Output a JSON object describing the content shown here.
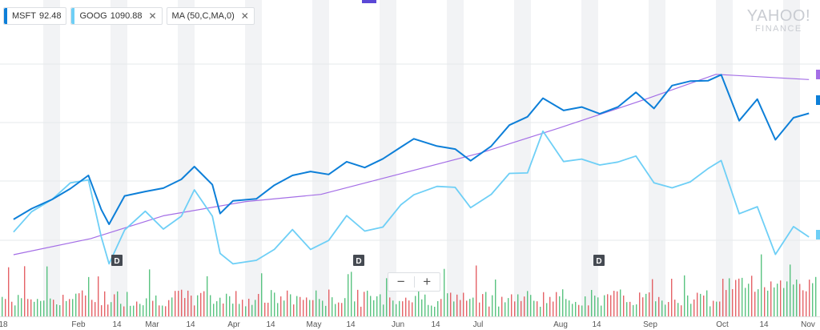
{
  "legend": {
    "items": [
      {
        "symbol": "MSFT",
        "value": "92.48",
        "color": "#0d7fd8",
        "close": ""
      },
      {
        "symbol": "GOOG",
        "value": "1090.88",
        "color": "#6ecff6",
        "close": "✕"
      },
      {
        "symbol": "MA (50,C,MA,0)",
        "value": "",
        "color": "",
        "close": "✕"
      }
    ]
  },
  "logo": {
    "line1": "YAHOO!",
    "line2": "FINANCE"
  },
  "zoom": {
    "minus": "−",
    "plus": "+"
  },
  "colors": {
    "msft": "#0d7fd8",
    "goog": "#6ecff6",
    "ma": "#a46ee6",
    "volume_up": "#3cb86a",
    "volume_down": "#e0474c",
    "band": "#f2f3f5",
    "marker_ma": "#a46ee6",
    "marker_msft": "#0d7fd8",
    "marker_goog": "#6ecff6"
  },
  "chart_data": {
    "type": "line",
    "title": "",
    "xlabel": "",
    "ylabel": "",
    "grid": true,
    "legend_position": "top-left",
    "x_ticks": [
      "18",
      "Feb",
      "14",
      "Mar",
      "14",
      "Apr",
      "14",
      "May",
      "14",
      "Jun",
      "14",
      "Jul",
      "Aug",
      "14",
      "Sep",
      "Oct",
      "14",
      "Nov"
    ],
    "event_markers": [
      "D",
      "D",
      "D"
    ],
    "series": [
      {
        "name": "MSFT",
        "values": [
          {
            "date": "2018-01-02",
            "value": 86.0
          },
          {
            "date": "2018-01-09",
            "value": 88.2
          },
          {
            "date": "2018-01-17",
            "value": 90.1
          },
          {
            "date": "2018-01-24",
            "value": 92.3
          },
          {
            "date": "2018-01-31",
            "value": 95.0
          },
          {
            "date": "2018-02-05",
            "value": 88.0
          },
          {
            "date": "2018-02-08",
            "value": 85.0
          },
          {
            "date": "2018-02-14",
            "value": 90.8
          },
          {
            "date": "2018-02-22",
            "value": 91.7
          },
          {
            "date": "2018-03-01",
            "value": 92.4
          },
          {
            "date": "2018-03-08",
            "value": 94.2
          },
          {
            "date": "2018-03-13",
            "value": 96.8
          },
          {
            "date": "2018-03-20",
            "value": 93.1
          },
          {
            "date": "2018-03-23",
            "value": 87.2
          },
          {
            "date": "2018-03-28",
            "value": 89.8
          },
          {
            "date": "2018-04-06",
            "value": 90.2
          },
          {
            "date": "2018-04-13",
            "value": 93.0
          },
          {
            "date": "2018-04-20",
            "value": 95.0
          },
          {
            "date": "2018-04-27",
            "value": 95.8
          },
          {
            "date": "2018-05-04",
            "value": 95.2
          },
          {
            "date": "2018-05-11",
            "value": 97.8
          },
          {
            "date": "2018-05-18",
            "value": 96.6
          },
          {
            "date": "2018-05-25",
            "value": 98.4
          },
          {
            "date": "2018-06-01",
            "value": 100.8
          },
          {
            "date": "2018-06-06",
            "value": 102.5
          },
          {
            "date": "2018-06-15",
            "value": 101.0
          },
          {
            "date": "2018-06-22",
            "value": 100.4
          },
          {
            "date": "2018-06-28",
            "value": 98.0
          },
          {
            "date": "2018-07-06",
            "value": 101.0
          },
          {
            "date": "2018-07-13",
            "value": 105.3
          },
          {
            "date": "2018-07-20",
            "value": 107.0
          },
          {
            "date": "2018-07-26",
            "value": 110.8
          },
          {
            "date": "2018-08-03",
            "value": 108.3
          },
          {
            "date": "2018-08-10",
            "value": 109.0
          },
          {
            "date": "2018-08-17",
            "value": 107.6
          },
          {
            "date": "2018-08-24",
            "value": 109.0
          },
          {
            "date": "2018-08-31",
            "value": 112.0
          },
          {
            "date": "2018-09-07",
            "value": 108.7
          },
          {
            "date": "2018-09-14",
            "value": 113.4
          },
          {
            "date": "2018-09-21",
            "value": 114.3
          },
          {
            "date": "2018-09-28",
            "value": 114.4
          },
          {
            "date": "2018-10-03",
            "value": 115.6
          },
          {
            "date": "2018-10-10",
            "value": 106.2
          },
          {
            "date": "2018-10-17",
            "value": 110.6
          },
          {
            "date": "2018-10-24",
            "value": 102.3
          },
          {
            "date": "2018-10-31",
            "value": 106.8
          },
          {
            "date": "2018-11-06",
            "value": 107.7
          }
        ]
      },
      {
        "name": "GOOG",
        "values": [
          {
            "date": "2018-01-02",
            "value": 1065
          },
          {
            "date": "2018-01-09",
            "value": 1106
          },
          {
            "date": "2018-01-17",
            "value": 1131
          },
          {
            "date": "2018-01-24",
            "value": 1164
          },
          {
            "date": "2018-01-31",
            "value": 1170
          },
          {
            "date": "2018-02-05",
            "value": 1055
          },
          {
            "date": "2018-02-08",
            "value": 1001
          },
          {
            "date": "2018-02-14",
            "value": 1069
          },
          {
            "date": "2018-02-22",
            "value": 1107
          },
          {
            "date": "2018-03-01",
            "value": 1071
          },
          {
            "date": "2018-03-08",
            "value": 1097
          },
          {
            "date": "2018-03-13",
            "value": 1150
          },
          {
            "date": "2018-03-20",
            "value": 1097
          },
          {
            "date": "2018-03-23",
            "value": 1022
          },
          {
            "date": "2018-03-28",
            "value": 1001
          },
          {
            "date": "2018-04-06",
            "value": 1008
          },
          {
            "date": "2018-04-13",
            "value": 1030
          },
          {
            "date": "2018-04-20",
            "value": 1070
          },
          {
            "date": "2018-04-27",
            "value": 1030
          },
          {
            "date": "2018-05-04",
            "value": 1048
          },
          {
            "date": "2018-05-11",
            "value": 1098
          },
          {
            "date": "2018-05-18",
            "value": 1067
          },
          {
            "date": "2018-05-25",
            "value": 1075
          },
          {
            "date": "2018-06-01",
            "value": 1120
          },
          {
            "date": "2018-06-06",
            "value": 1140
          },
          {
            "date": "2018-06-15",
            "value": 1157
          },
          {
            "date": "2018-06-22",
            "value": 1155
          },
          {
            "date": "2018-06-28",
            "value": 1114
          },
          {
            "date": "2018-07-06",
            "value": 1141
          },
          {
            "date": "2018-07-13",
            "value": 1183
          },
          {
            "date": "2018-07-20",
            "value": 1184
          },
          {
            "date": "2018-07-26",
            "value": 1268
          },
          {
            "date": "2018-08-03",
            "value": 1207
          },
          {
            "date": "2018-08-10",
            "value": 1212
          },
          {
            "date": "2018-08-17",
            "value": 1200
          },
          {
            "date": "2018-08-24",
            "value": 1206
          },
          {
            "date": "2018-08-31",
            "value": 1218
          },
          {
            "date": "2018-09-07",
            "value": 1164
          },
          {
            "date": "2018-09-14",
            "value": 1154
          },
          {
            "date": "2018-09-21",
            "value": 1166
          },
          {
            "date": "2018-09-28",
            "value": 1193
          },
          {
            "date": "2018-10-03",
            "value": 1209
          },
          {
            "date": "2018-10-10",
            "value": 1102
          },
          {
            "date": "2018-10-17",
            "value": 1116
          },
          {
            "date": "2018-10-24",
            "value": 1020
          },
          {
            "date": "2018-10-31",
            "value": 1076
          },
          {
            "date": "2018-11-06",
            "value": 1055
          }
        ]
      },
      {
        "name": "MA (50,C,MA,0)",
        "values": [
          {
            "date": "2018-01-02",
            "value": 83.0
          },
          {
            "date": "2018-02-01",
            "value": 85.5
          },
          {
            "date": "2018-03-01",
            "value": 89.0
          },
          {
            "date": "2018-04-02",
            "value": 91.2
          },
          {
            "date": "2018-05-01",
            "value": 92.3
          },
          {
            "date": "2018-06-01",
            "value": 95.5
          },
          {
            "date": "2018-07-02",
            "value": 98.7
          },
          {
            "date": "2018-08-01",
            "value": 102.5
          },
          {
            "date": "2018-09-04",
            "value": 107.0
          },
          {
            "date": "2018-10-01",
            "value": 110.8
          },
          {
            "date": "2018-11-06",
            "value": 110.0
          }
        ]
      }
    ],
    "volume": {
      "unit": "shares",
      "note": "daily volume bars, green up / red down"
    }
  }
}
